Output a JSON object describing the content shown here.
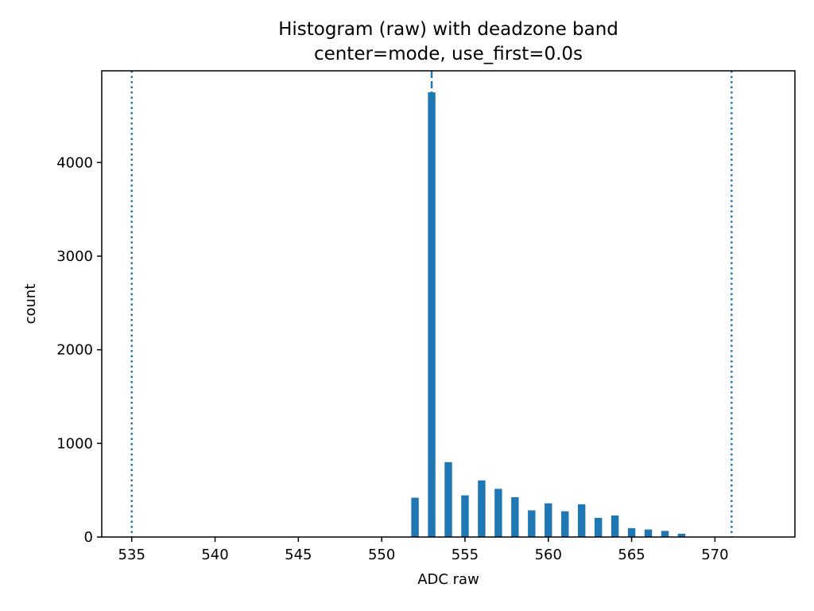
{
  "chart_data": {
    "type": "bar",
    "title": "Histogram (raw) with deadzone band",
    "subtitle": "center=mode, use_first=0.0s",
    "xlabel": "ADC raw",
    "ylabel": "count",
    "xlim": [
      533.2,
      574.8
    ],
    "ylim": [
      0,
      4980
    ],
    "xticks": [
      535,
      540,
      545,
      550,
      555,
      560,
      565,
      570
    ],
    "yticks": [
      0,
      1000,
      2000,
      3000,
      4000
    ],
    "bar_color": "#1f77b4",
    "line_color": "#1f77b4",
    "bar_width": 0.45,
    "grid": false,
    "bins": [
      552,
      553,
      554,
      555,
      556,
      557,
      558,
      559,
      560,
      561,
      562,
      563,
      564,
      565,
      566,
      567,
      568
    ],
    "counts": [
      420,
      4750,
      800,
      445,
      605,
      515,
      425,
      285,
      360,
      275,
      350,
      205,
      230,
      95,
      80,
      65,
      35
    ],
    "vlines": [
      {
        "x": 535,
        "style": "dotted",
        "role": "deadzone-lower"
      },
      {
        "x": 553,
        "style": "dashed",
        "role": "center"
      },
      {
        "x": 571,
        "style": "dotted",
        "role": "deadzone-upper"
      }
    ]
  }
}
